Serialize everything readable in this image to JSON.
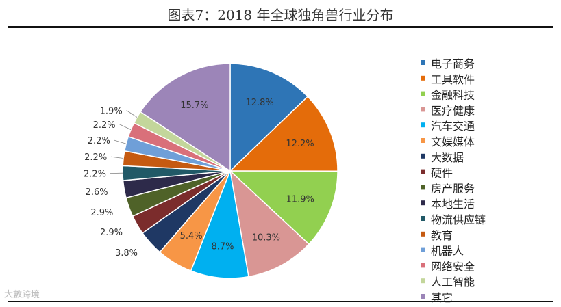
{
  "title": "图表7：2018 年全球独角兽行业分布",
  "watermark": "大數跨境",
  "chart_data": {
    "type": "pie",
    "title": "图表7：2018 年全球独角兽行业分布",
    "legend_position": "right",
    "slices": [
      {
        "name": "电子商务",
        "value": 12.8,
        "label": "12.8%",
        "color": "#2e75b6"
      },
      {
        "name": "工具软件",
        "value": 12.2,
        "label": "12.2%",
        "color": "#e46c0a"
      },
      {
        "name": "金融科技",
        "value": 11.9,
        "label": "11.9%",
        "color": "#92d050"
      },
      {
        "name": "医疗健康",
        "value": 10.3,
        "label": "10.3%",
        "color": "#d99694"
      },
      {
        "name": "汽车交通",
        "value": 8.7,
        "label": "8.7%",
        "color": "#00b0f0"
      },
      {
        "name": "文娱媒体",
        "value": 5.4,
        "label": "5.4%",
        "color": "#f79646"
      },
      {
        "name": "大数据",
        "value": 3.8,
        "label": "3.8%",
        "color": "#1f3864"
      },
      {
        "name": "硬件",
        "value": 2.9,
        "label": "2.9%",
        "color": "#7b2c2c"
      },
      {
        "name": "房产服务",
        "value": 2.9,
        "label": "2.9%",
        "color": "#4f6228"
      },
      {
        "name": "本地生活",
        "value": 2.6,
        "label": "2.6%",
        "color": "#2d2a4a"
      },
      {
        "name": "物流供应链",
        "value": 2.2,
        "label": "2.2%",
        "color": "#215967"
      },
      {
        "name": "教育",
        "value": 2.2,
        "label": "2.2%",
        "color": "#c55a11"
      },
      {
        "name": "机器人",
        "value": 2.2,
        "label": "2.2%",
        "color": "#6f9fd8"
      },
      {
        "name": "网络安全",
        "value": 2.2,
        "label": "2.2%",
        "color": "#d9707a"
      },
      {
        "name": "人工智能",
        "value": 1.9,
        "label": "1.9%",
        "color": "#c3d69b"
      },
      {
        "name": "其它",
        "value": 15.7,
        "label": "15.7%",
        "color": "#9c85b8"
      }
    ]
  }
}
